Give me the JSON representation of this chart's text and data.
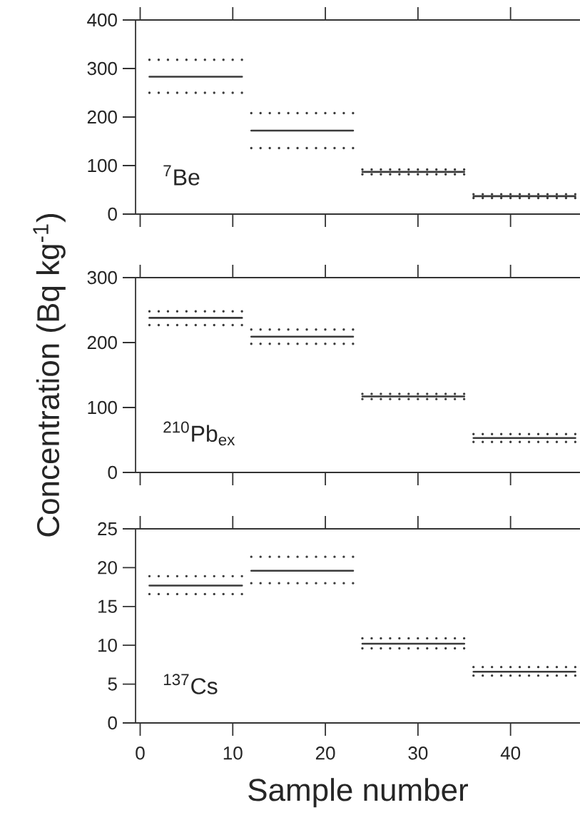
{
  "chart_data": [
    {
      "type": "line",
      "x": [
        1,
        11,
        11.5,
        12,
        23,
        23.5,
        24,
        35,
        35.5,
        36,
        47
      ],
      "xlim": [
        -0.5,
        47.5
      ],
      "ylim": [
        0,
        400
      ],
      "xticks": [
        0,
        10,
        20,
        30,
        40
      ],
      "yticks": [
        0,
        100,
        200,
        300,
        400
      ],
      "tick_labels": "y",
      "annotations": [
        "$^{7}$Be"
      ],
      "series": [
        {
          "color": "#3a3a3a",
          "line_style": "solid",
          "values": [
            283,
            283,
            null,
            172,
            172,
            null,
            87,
            87,
            null,
            37,
            37
          ]
        },
        {
          "color": "#3a3a3a",
          "line_style": "dotted",
          "values": [
            318,
            318,
            null,
            208,
            208,
            null,
            92,
            92,
            null,
            41,
            41
          ]
        },
        {
          "color": "#3a3a3a",
          "line_style": "dotted",
          "values": [
            250,
            250,
            null,
            136,
            136,
            null,
            82,
            82,
            null,
            33,
            33
          ]
        }
      ]
    },
    {
      "type": "line",
      "x": [
        1,
        11,
        11.5,
        12,
        23,
        23.5,
        24,
        35,
        35.5,
        36,
        47
      ],
      "xlim": [
        -0.5,
        47.5
      ],
      "ylim": [
        0,
        300
      ],
      "xticks": [
        0,
        10,
        20,
        30,
        40
      ],
      "yticks": [
        0,
        100,
        200,
        300
      ],
      "tick_labels": "y",
      "ylabel": "Concentration (Bq kg$^{-1}$)",
      "annotations": [
        "$^{210}$Pb$_{ex}$"
      ],
      "series": [
        {
          "color": "#3a3a3a",
          "line_style": "solid",
          "values": [
            238,
            238,
            null,
            209,
            209,
            null,
            117,
            117,
            null,
            53,
            53
          ]
        },
        {
          "color": "#3a3a3a",
          "line_style": "dotted",
          "values": [
            248,
            248,
            null,
            220,
            220,
            null,
            121,
            121,
            null,
            59,
            59
          ]
        },
        {
          "color": "#3a3a3a",
          "line_style": "dotted",
          "values": [
            227,
            227,
            null,
            198,
            198,
            null,
            113,
            113,
            null,
            47,
            47
          ]
        }
      ]
    },
    {
      "type": "line",
      "x": [
        1,
        11,
        11.5,
        12,
        23,
        23.5,
        24,
        35,
        35.5,
        36,
        47
      ],
      "xlim": [
        -0.5,
        47.5
      ],
      "ylim": [
        0,
        25
      ],
      "xticks": [
        0,
        10,
        20,
        30,
        40
      ],
      "yticks": [
        0,
        5,
        10,
        15,
        20,
        25
      ],
      "xlabel": "Sample number",
      "annotations": [
        "$^{137}$Cs"
      ],
      "series": [
        {
          "color": "#3a3a3a",
          "line_style": "solid",
          "values": [
            17.7,
            17.7,
            null,
            19.6,
            19.6,
            null,
            10.2,
            10.2,
            null,
            6.6,
            6.6
          ]
        },
        {
          "color": "#3a3a3a",
          "line_style": "dotted",
          "values": [
            18.9,
            18.9,
            null,
            21.4,
            21.4,
            null,
            10.9,
            10.9,
            null,
            7.2,
            7.2
          ]
        },
        {
          "color": "#3a3a3a",
          "line_style": "dotted",
          "values": [
            16.6,
            16.6,
            null,
            18.0,
            18.0,
            null,
            9.6,
            9.6,
            null,
            6.1,
            6.1
          ]
        }
      ]
    }
  ]
}
